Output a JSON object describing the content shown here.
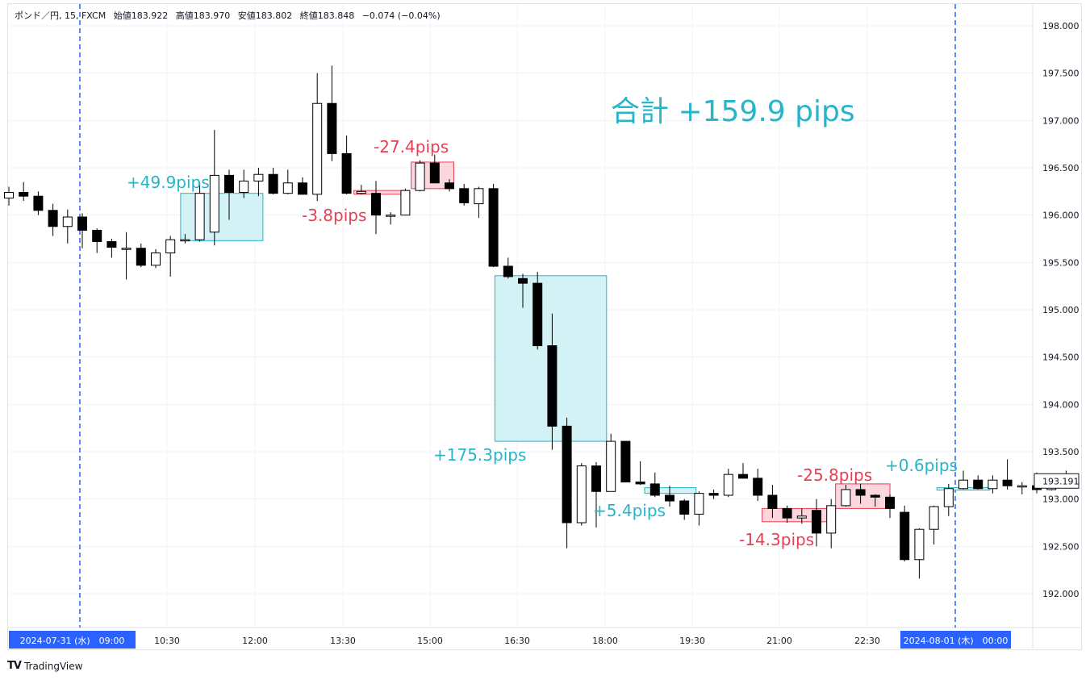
{
  "header": {
    "symbol": "ポンド／円, 15, FXCM",
    "open": "始値183.922",
    "high": "高値183.970",
    "low": "安値183.802",
    "close": "終値183.848",
    "change": "−0.074 (−0.04%)"
  },
  "footer": {
    "brand": "TradingView",
    "brand_icon": "tradingview-logo-icon"
  },
  "colors": {
    "up_body": "#ffffff",
    "down_body": "#000000",
    "wick": "#000000",
    "profit": "#26b5c9",
    "loss": "#e83e52",
    "profit_fill": "#d3f2f5",
    "loss_fill": "#fbd6dc",
    "session_line": "#2962ff",
    "grid": "#f0f3fa",
    "axis_text": "#131722"
  },
  "chart_data": {
    "type": "candlestick",
    "ylim": [
      191.65,
      198.2
    ],
    "y_ticks": [
      "198.000",
      "197.500",
      "197.000",
      "196.500",
      "196.000",
      "195.500",
      "195.000",
      "194.500",
      "194.000",
      "193.500",
      "193.000",
      "192.500",
      "192.000"
    ],
    "x_ticks": [
      "10:30",
      "12:00",
      "13:30",
      "15:00",
      "16:30",
      "18:00",
      "19:30",
      "21:00",
      "22:30"
    ],
    "session_labels": [
      "2024-07-31 (水)　09:00",
      "2024-08-01 (木)　00:00"
    ],
    "current_price": "193.191",
    "total_label": "合計 +159.9 pips",
    "candles": [
      [
        196.18,
        196.3,
        196.1,
        196.24
      ],
      [
        196.24,
        196.35,
        196.15,
        196.2
      ],
      [
        196.2,
        196.25,
        196.0,
        196.05
      ],
      [
        196.05,
        196.12,
        195.78,
        195.88
      ],
      [
        195.88,
        196.06,
        195.7,
        195.98
      ],
      [
        195.98,
        196.02,
        195.65,
        195.84
      ],
      [
        195.84,
        195.86,
        195.6,
        195.72
      ],
      [
        195.72,
        195.75,
        195.55,
        195.66
      ],
      [
        195.65,
        195.82,
        195.32,
        195.65
      ],
      [
        195.65,
        195.7,
        195.45,
        195.47
      ],
      [
        195.47,
        195.64,
        195.44,
        195.6
      ],
      [
        195.6,
        195.78,
        195.35,
        195.74
      ],
      [
        195.74,
        195.8,
        195.7,
        195.74
      ],
      [
        195.74,
        196.35,
        195.72,
        196.23
      ],
      [
        195.82,
        196.9,
        195.68,
        196.42
      ],
      [
        196.42,
        196.48,
        195.95,
        196.24
      ],
      [
        196.24,
        196.48,
        196.18,
        196.36
      ],
      [
        196.36,
        196.5,
        196.2,
        196.43
      ],
      [
        196.43,
        196.5,
        196.22,
        196.23
      ],
      [
        196.23,
        196.48,
        196.22,
        196.34
      ],
      [
        196.34,
        196.4,
        196.22,
        196.22
      ],
      [
        196.22,
        197.5,
        196.15,
        197.18
      ],
      [
        197.18,
        197.58,
        196.57,
        196.65
      ],
      [
        196.65,
        196.84,
        196.22,
        196.23
      ],
      [
        196.23,
        196.32,
        196.22,
        196.25
      ],
      [
        196.23,
        196.36,
        195.8,
        196.0
      ],
      [
        196.0,
        196.03,
        195.9,
        196.0
      ],
      [
        196.0,
        196.28,
        196.0,
        196.26
      ],
      [
        196.26,
        196.58,
        196.25,
        196.55
      ],
      [
        196.55,
        196.64,
        196.34,
        196.34
      ],
      [
        196.34,
        196.38,
        196.25,
        196.28
      ],
      [
        196.28,
        196.33,
        196.1,
        196.13
      ],
      [
        196.12,
        196.3,
        195.97,
        196.28
      ],
      [
        196.28,
        196.33,
        195.45,
        195.46
      ],
      [
        195.46,
        195.55,
        195.33,
        195.35
      ],
      [
        195.33,
        195.38,
        195.02,
        195.28
      ],
      [
        195.28,
        195.4,
        194.58,
        194.62
      ],
      [
        194.62,
        194.96,
        193.52,
        193.77
      ],
      [
        193.77,
        193.86,
        192.48,
        192.75
      ],
      [
        192.75,
        193.38,
        192.72,
        193.35
      ],
      [
        193.35,
        193.39,
        192.7,
        193.08
      ],
      [
        193.08,
        193.69,
        193.08,
        193.61
      ],
      [
        193.61,
        193.61,
        193.18,
        193.18
      ],
      [
        193.18,
        193.4,
        193.15,
        193.16
      ],
      [
        193.16,
        193.28,
        193.02,
        193.04
      ],
      [
        193.04,
        193.14,
        192.92,
        192.98
      ],
      [
        192.98,
        193.0,
        192.78,
        192.84
      ],
      [
        192.84,
        193.08,
        192.72,
        193.06
      ],
      [
        193.06,
        193.1,
        193.0,
        193.04
      ],
      [
        193.04,
        193.32,
        193.02,
        193.26
      ],
      [
        193.26,
        193.38,
        193.24,
        193.22
      ],
      [
        193.22,
        193.32,
        192.98,
        193.04
      ],
      [
        193.04,
        193.15,
        192.8,
        192.9
      ],
      [
        192.9,
        192.93,
        192.75,
        192.8
      ],
      [
        192.8,
        192.9,
        192.74,
        192.82
      ],
      [
        192.88,
        193.0,
        192.5,
        192.64
      ],
      [
        192.64,
        193.0,
        192.48,
        192.93
      ],
      [
        192.93,
        193.15,
        192.92,
        193.1
      ],
      [
        193.1,
        193.16,
        192.95,
        193.04
      ],
      [
        193.04,
        193.05,
        192.92,
        193.02
      ],
      [
        193.02,
        193.05,
        192.8,
        192.9
      ],
      [
        192.86,
        192.93,
        192.34,
        192.36
      ],
      [
        192.36,
        192.69,
        192.16,
        192.68
      ],
      [
        192.68,
        192.93,
        192.52,
        192.92
      ],
      [
        192.92,
        193.16,
        192.82,
        193.11
      ],
      [
        193.11,
        193.3,
        193.1,
        193.2
      ],
      [
        193.2,
        193.25,
        193.1,
        193.11
      ],
      [
        193.11,
        193.25,
        193.06,
        193.2
      ],
      [
        193.2,
        193.42,
        193.1,
        193.14
      ],
      [
        193.14,
        193.18,
        193.05,
        193.14
      ],
      [
        193.14,
        193.28,
        193.06,
        193.1
      ],
      [
        193.1,
        193.26,
        193.09,
        193.25
      ],
      [
        193.25,
        193.3,
        193.18,
        193.21
      ]
    ],
    "trades": [
      {
        "label": "+49.9pips",
        "kind": "profit",
        "i0": 12,
        "i1": 17,
        "p0": 195.73,
        "p1": 196.23
      },
      {
        "label": "-3.8pips",
        "kind": "loss",
        "i0": 23.8,
        "i1": 27,
        "p0": 196.22,
        "p1": 196.26
      },
      {
        "label": "-27.4pips",
        "kind": "loss",
        "i0": 27.7,
        "i1": 30,
        "p0": 196.28,
        "p1": 196.56
      },
      {
        "label": "+175.3pips",
        "kind": "profit",
        "i0": 33.4,
        "i1": 40.4,
        "p0": 193.61,
        "p1": 195.36
      },
      {
        "label": "+5.4pips",
        "kind": "profit",
        "i0": 43.6,
        "i1": 46.5,
        "p0": 193.06,
        "p1": 193.12
      },
      {
        "label": "-14.3pips",
        "kind": "loss",
        "i0": 51.6,
        "i1": 55.5,
        "p0": 192.76,
        "p1": 192.9
      },
      {
        "label": "-25.8pips",
        "kind": "loss",
        "i0": 56.6,
        "i1": 59.7,
        "p0": 192.9,
        "p1": 193.16
      },
      {
        "label": "+0.6pips",
        "kind": "profit",
        "i0": 63.5,
        "i1": 66.5,
        "p0": 193.11,
        "p1": 193.12
      }
    ]
  }
}
